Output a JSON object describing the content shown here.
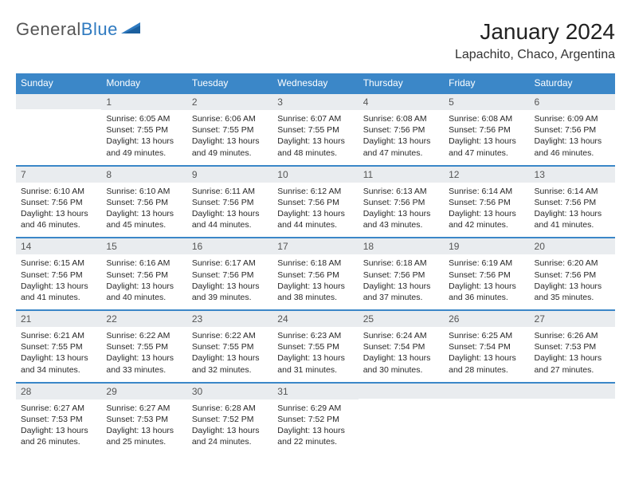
{
  "logo": {
    "word1": "General",
    "word2": "Blue"
  },
  "title": "January 2024",
  "location": "Lapachito, Chaco, Argentina",
  "colors": {
    "header_bg": "#3b87c8",
    "header_text": "#ffffff",
    "daynum_bg": "#e9ecef",
    "row_border": "#3b87c8",
    "logo_blue": "#2f7ac0"
  },
  "day_headers": [
    "Sunday",
    "Monday",
    "Tuesday",
    "Wednesday",
    "Thursday",
    "Friday",
    "Saturday"
  ],
  "weeks": [
    [
      {
        "n": "",
        "lines": []
      },
      {
        "n": "1",
        "lines": [
          "Sunrise: 6:05 AM",
          "Sunset: 7:55 PM",
          "Daylight: 13 hours and 49 minutes."
        ]
      },
      {
        "n": "2",
        "lines": [
          "Sunrise: 6:06 AM",
          "Sunset: 7:55 PM",
          "Daylight: 13 hours and 49 minutes."
        ]
      },
      {
        "n": "3",
        "lines": [
          "Sunrise: 6:07 AM",
          "Sunset: 7:55 PM",
          "Daylight: 13 hours and 48 minutes."
        ]
      },
      {
        "n": "4",
        "lines": [
          "Sunrise: 6:08 AM",
          "Sunset: 7:56 PM",
          "Daylight: 13 hours and 47 minutes."
        ]
      },
      {
        "n": "5",
        "lines": [
          "Sunrise: 6:08 AM",
          "Sunset: 7:56 PM",
          "Daylight: 13 hours and 47 minutes."
        ]
      },
      {
        "n": "6",
        "lines": [
          "Sunrise: 6:09 AM",
          "Sunset: 7:56 PM",
          "Daylight: 13 hours and 46 minutes."
        ]
      }
    ],
    [
      {
        "n": "7",
        "lines": [
          "Sunrise: 6:10 AM",
          "Sunset: 7:56 PM",
          "Daylight: 13 hours and 46 minutes."
        ]
      },
      {
        "n": "8",
        "lines": [
          "Sunrise: 6:10 AM",
          "Sunset: 7:56 PM",
          "Daylight: 13 hours and 45 minutes."
        ]
      },
      {
        "n": "9",
        "lines": [
          "Sunrise: 6:11 AM",
          "Sunset: 7:56 PM",
          "Daylight: 13 hours and 44 minutes."
        ]
      },
      {
        "n": "10",
        "lines": [
          "Sunrise: 6:12 AM",
          "Sunset: 7:56 PM",
          "Daylight: 13 hours and 44 minutes."
        ]
      },
      {
        "n": "11",
        "lines": [
          "Sunrise: 6:13 AM",
          "Sunset: 7:56 PM",
          "Daylight: 13 hours and 43 minutes."
        ]
      },
      {
        "n": "12",
        "lines": [
          "Sunrise: 6:14 AM",
          "Sunset: 7:56 PM",
          "Daylight: 13 hours and 42 minutes."
        ]
      },
      {
        "n": "13",
        "lines": [
          "Sunrise: 6:14 AM",
          "Sunset: 7:56 PM",
          "Daylight: 13 hours and 41 minutes."
        ]
      }
    ],
    [
      {
        "n": "14",
        "lines": [
          "Sunrise: 6:15 AM",
          "Sunset: 7:56 PM",
          "Daylight: 13 hours and 41 minutes."
        ]
      },
      {
        "n": "15",
        "lines": [
          "Sunrise: 6:16 AM",
          "Sunset: 7:56 PM",
          "Daylight: 13 hours and 40 minutes."
        ]
      },
      {
        "n": "16",
        "lines": [
          "Sunrise: 6:17 AM",
          "Sunset: 7:56 PM",
          "Daylight: 13 hours and 39 minutes."
        ]
      },
      {
        "n": "17",
        "lines": [
          "Sunrise: 6:18 AM",
          "Sunset: 7:56 PM",
          "Daylight: 13 hours and 38 minutes."
        ]
      },
      {
        "n": "18",
        "lines": [
          "Sunrise: 6:18 AM",
          "Sunset: 7:56 PM",
          "Daylight: 13 hours and 37 minutes."
        ]
      },
      {
        "n": "19",
        "lines": [
          "Sunrise: 6:19 AM",
          "Sunset: 7:56 PM",
          "Daylight: 13 hours and 36 minutes."
        ]
      },
      {
        "n": "20",
        "lines": [
          "Sunrise: 6:20 AM",
          "Sunset: 7:56 PM",
          "Daylight: 13 hours and 35 minutes."
        ]
      }
    ],
    [
      {
        "n": "21",
        "lines": [
          "Sunrise: 6:21 AM",
          "Sunset: 7:55 PM",
          "Daylight: 13 hours and 34 minutes."
        ]
      },
      {
        "n": "22",
        "lines": [
          "Sunrise: 6:22 AM",
          "Sunset: 7:55 PM",
          "Daylight: 13 hours and 33 minutes."
        ]
      },
      {
        "n": "23",
        "lines": [
          "Sunrise: 6:22 AM",
          "Sunset: 7:55 PM",
          "Daylight: 13 hours and 32 minutes."
        ]
      },
      {
        "n": "24",
        "lines": [
          "Sunrise: 6:23 AM",
          "Sunset: 7:55 PM",
          "Daylight: 13 hours and 31 minutes."
        ]
      },
      {
        "n": "25",
        "lines": [
          "Sunrise: 6:24 AM",
          "Sunset: 7:54 PM",
          "Daylight: 13 hours and 30 minutes."
        ]
      },
      {
        "n": "26",
        "lines": [
          "Sunrise: 6:25 AM",
          "Sunset: 7:54 PM",
          "Daylight: 13 hours and 28 minutes."
        ]
      },
      {
        "n": "27",
        "lines": [
          "Sunrise: 6:26 AM",
          "Sunset: 7:53 PM",
          "Daylight: 13 hours and 27 minutes."
        ]
      }
    ],
    [
      {
        "n": "28",
        "lines": [
          "Sunrise: 6:27 AM",
          "Sunset: 7:53 PM",
          "Daylight: 13 hours and 26 minutes."
        ]
      },
      {
        "n": "29",
        "lines": [
          "Sunrise: 6:27 AM",
          "Sunset: 7:53 PM",
          "Daylight: 13 hours and 25 minutes."
        ]
      },
      {
        "n": "30",
        "lines": [
          "Sunrise: 6:28 AM",
          "Sunset: 7:52 PM",
          "Daylight: 13 hours and 24 minutes."
        ]
      },
      {
        "n": "31",
        "lines": [
          "Sunrise: 6:29 AM",
          "Sunset: 7:52 PM",
          "Daylight: 13 hours and 22 minutes."
        ]
      },
      {
        "n": "",
        "lines": []
      },
      {
        "n": "",
        "lines": []
      },
      {
        "n": "",
        "lines": []
      }
    ]
  ]
}
